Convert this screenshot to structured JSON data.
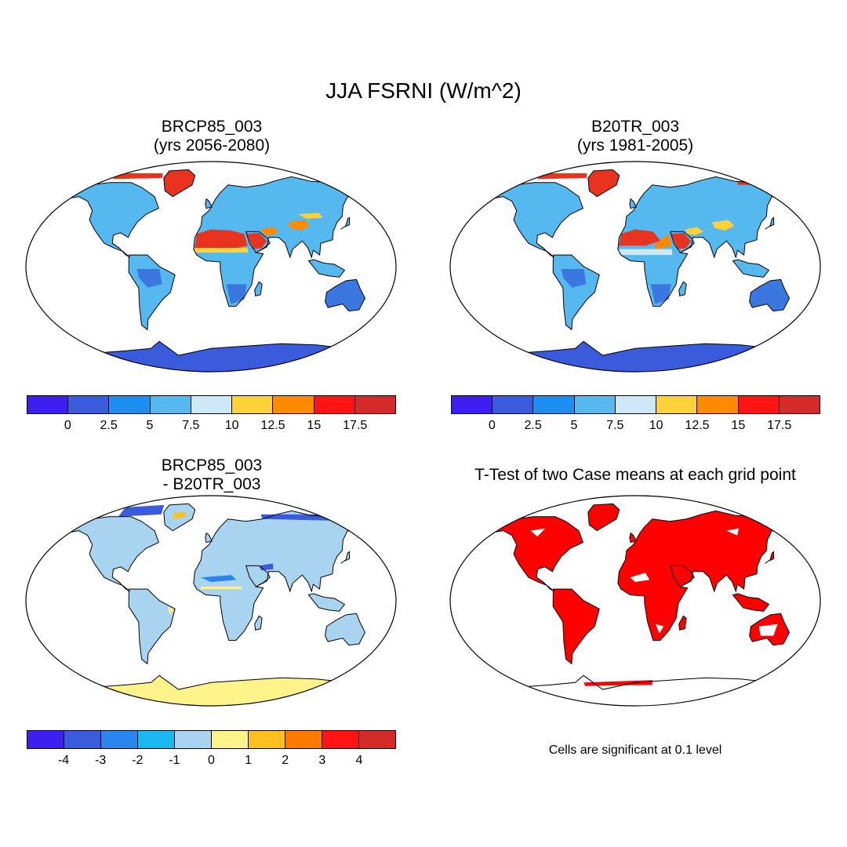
{
  "title": "JJA FSRNI (W/m^2)",
  "panels": {
    "future": {
      "title_line1": "BRCP85_003",
      "title_line2": "(yrs 2056-2080)"
    },
    "historical": {
      "title_line1": "B20TR_003",
      "title_line2": "(yrs 1981-2005)"
    },
    "difference": {
      "title_line1": "BRCP85_003",
      "title_line2": "- B20TR_003"
    },
    "ttest": {
      "title": "T-Test of two Case means at each grid point"
    }
  },
  "colorbar_main": {
    "colors": [
      "#3f1ff0",
      "#3a5bdc",
      "#1e8ff0",
      "#55b8ef",
      "#cde9f8",
      "#ffd23a",
      "#ff8a00",
      "#ff1414",
      "#d42a2a"
    ],
    "labels": [
      "0",
      "2.5",
      "5",
      "7.5",
      "10",
      "12.5",
      "15",
      "17.5"
    ]
  },
  "colorbar_main_right": {
    "labels": [
      "0",
      "2.5",
      "5",
      "7.5",
      "10",
      "12.5",
      "15",
      "17.5"
    ]
  },
  "colorbar_diff": {
    "colors": [
      "#3f1ff0",
      "#3a5bdc",
      "#2a85ee",
      "#1ab8f0",
      "#a8d4f0",
      "#fff38a",
      "#ffc020",
      "#ff7a00",
      "#ff1414",
      "#d42a2a"
    ],
    "labels": [
      "-4",
      "-3",
      "-2",
      "-1",
      "0",
      "1",
      "2",
      "3",
      "4"
    ]
  },
  "significance_note": "Cells are significant at 0.1 level",
  "map_colors": {
    "land_base": "#55b8ef",
    "land_low": "#3a78e0",
    "hot": "#e8331f",
    "warm": "#ff8a00",
    "mild": "#ffd23a",
    "antarctica_main": "#3a5bdc",
    "diff_base": "#a8d4f0",
    "diff_pos": "#fff38a",
    "diff_neg": "#3a5bdc",
    "significant": "#ff0000"
  }
}
